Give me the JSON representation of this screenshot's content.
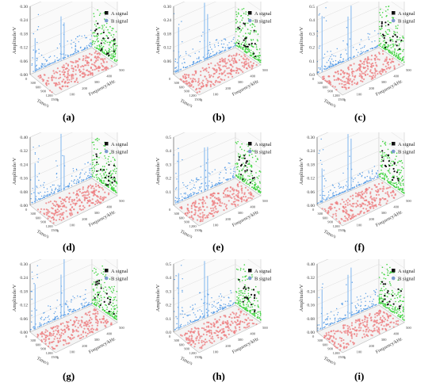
{
  "figure": {
    "panels": [
      {
        "caption": "(a)",
        "ymax": 0.3,
        "yticks": [
          "0.00",
          "0.06",
          "0.12",
          "0.18",
          "0.24",
          "0.30"
        ]
      },
      {
        "caption": "(b)",
        "ymax": 0.3,
        "yticks": [
          "0.06",
          "0.12",
          "0.18",
          "0.24",
          "0.30"
        ]
      },
      {
        "caption": "(c)",
        "ymax": 0.5,
        "yticks": [
          "0.0",
          "0.1",
          "0.2",
          "0.3",
          "0.4",
          "0.5"
        ]
      },
      {
        "caption": "(d)",
        "ymax": 0.4,
        "yticks": [
          "0.00",
          "0.08",
          "0.16",
          "0.24",
          "0.32",
          "0.40"
        ]
      },
      {
        "caption": "(e)",
        "ymax": 0.5,
        "yticks": [
          "0.1",
          "0.2",
          "0.3",
          "0.4",
          "0.5"
        ]
      },
      {
        "caption": "(f)",
        "ymax": 0.3,
        "yticks": [
          "0.00",
          "0.06",
          "0.12",
          "0.18",
          "0.24",
          "0.30"
        ]
      },
      {
        "caption": "(g)",
        "ymax": 0.3,
        "yticks": [
          "0.00",
          "0.06",
          "0.12",
          "0.18",
          "0.24",
          "0.30"
        ]
      },
      {
        "caption": "(h)",
        "ymax": 0.5,
        "yticks": [
          "0.0",
          "0.1",
          "0.2",
          "0.3",
          "0.4",
          "0.5"
        ]
      },
      {
        "caption": "(i)",
        "ymax": 0.4,
        "yticks": [
          "0.00",
          "0.08",
          "0.16",
          "0.24",
          "0.32",
          "0.40"
        ]
      }
    ]
  },
  "chart_data": [
    {
      "type": "scatter",
      "panel": "(a)",
      "ylabel": "Amplitude/V",
      "xlabel": "Time/s",
      "zlabel": "Frequency/kHz",
      "legend": [
        "A signal",
        "B signal"
      ],
      "legend_position": "top-right",
      "ylim": [
        0,
        0.3
      ],
      "grid": true,
      "colors": {
        "time_projection": "#4a90d9",
        "plane_projection": "#e8777a",
        "frequency_projection": "#3fcf3f",
        "A": "#000000",
        "B": "#6a8fc8"
      }
    },
    {
      "type": "scatter",
      "panel": "(b)",
      "ylabel": "Amplitude/V",
      "xlabel": "Time/s",
      "zlabel": "Frequency/kHz",
      "legend": [
        "A signal",
        "B signal"
      ],
      "legend_position": "top-right",
      "ylim": [
        0,
        0.3
      ],
      "grid": true
    },
    {
      "type": "scatter",
      "panel": "(c)",
      "ylabel": "Amplitude/V",
      "xlabel": "Time/s",
      "zlabel": "Frequency/kHz",
      "legend": [
        "A signal",
        "B signal"
      ],
      "legend_position": "top-right",
      "ylim": [
        0,
        0.5
      ],
      "grid": true
    },
    {
      "type": "scatter",
      "panel": "(d)",
      "ylabel": "Amplitude/V",
      "xlabel": "Time/s",
      "zlabel": "Frequency/kHz",
      "legend": [
        "A signal",
        "B signal"
      ],
      "legend_position": "top-right",
      "ylim": [
        0,
        0.4
      ],
      "grid": true
    },
    {
      "type": "scatter",
      "panel": "(e)",
      "ylabel": "Amplitude/V",
      "xlabel": "Time/s",
      "zlabel": "Frequency/kHz",
      "legend": [
        "A signal",
        "B signal"
      ],
      "legend_position": "top-right",
      "ylim": [
        0,
        0.5
      ],
      "grid": true
    },
    {
      "type": "scatter",
      "panel": "(f)",
      "ylabel": "Amplitude/V",
      "xlabel": "Time/s",
      "zlabel": "Frequency/kHz",
      "legend": [
        "A signal",
        "B signal"
      ],
      "legend_position": "top-right",
      "ylim": [
        0,
        0.3
      ],
      "grid": true
    },
    {
      "type": "scatter",
      "panel": "(g)",
      "ylabel": "Amplitude/V",
      "xlabel": "Time/s",
      "zlabel": "Frequency/kHz",
      "legend": [
        "A signal",
        "B signal"
      ],
      "legend_position": "top-right",
      "ylim": [
        0,
        0.3
      ],
      "grid": true
    },
    {
      "type": "scatter",
      "panel": "(h)",
      "ylabel": "Amplitude/V",
      "xlabel": "Time/s",
      "zlabel": "Frequency/kHz",
      "legend": [
        "A signal",
        "B signal"
      ],
      "legend_position": "top-right",
      "ylim": [
        0,
        0.5
      ],
      "grid": true
    },
    {
      "type": "scatter",
      "panel": "(i)",
      "ylabel": "Amplitude/V",
      "xlabel": "Time/s",
      "zlabel": "Frequency/kHz",
      "legend": [
        "A signal",
        "B signal"
      ],
      "legend_position": "top-right",
      "ylim": [
        0,
        0.4
      ],
      "grid": true
    }
  ],
  "labels": {
    "ylabel": "Amplitude/V",
    "xlabel": "Time/s",
    "zlabel": "Frequency/kHz",
    "legend_a": "A signal",
    "legend_b": "B signal",
    "time_ticks": [
      "0",
      "300",
      "600",
      "900",
      "1200",
      "1500"
    ],
    "freq_ticks": [
      "0",
      "100",
      "200",
      "300",
      "400",
      "500"
    ]
  }
}
